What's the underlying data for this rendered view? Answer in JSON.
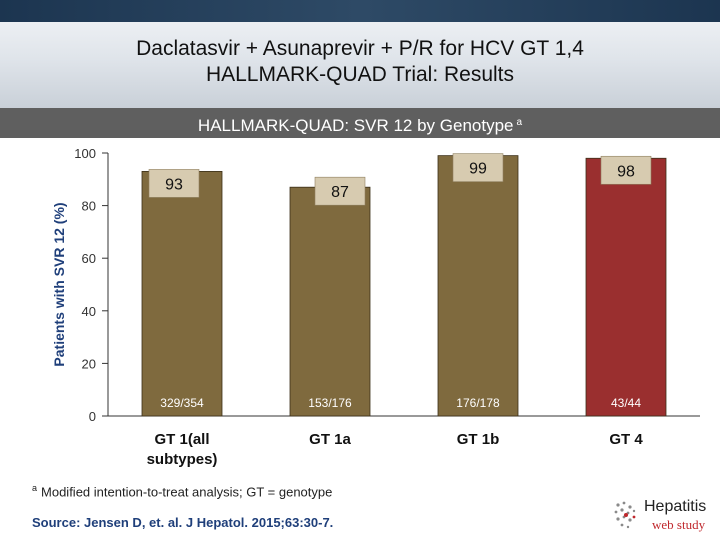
{
  "title": {
    "line1": "Daclatasvir + Asunaprevir + P/R for HCV GT 1,4",
    "line2": "HALLMARK-QUAD Trial: Results"
  },
  "subtitle": {
    "text": "HALLMARK-QUAD: SVR 12 by Genotype",
    "marker": "a"
  },
  "footnote": {
    "marker": "a",
    "text": "Modified intention-to-treat analysis; GT = genotype"
  },
  "source": "Source: Jensen D, et. al. J Hepatol. 2015;63:30-7.",
  "logo": {
    "line1": "Hepatitis",
    "line2": "web study"
  },
  "colors": {
    "gt1": "#7f6a3e",
    "gt4": "#9a2f2f",
    "label_box": "#d7cbb0"
  },
  "chart_data": {
    "type": "bar",
    "title": "HALLMARK-QUAD: SVR 12 by Genotype",
    "ylabel": "Patients with SVR 12 (%)",
    "xlabel": "",
    "ylim": [
      0,
      100
    ],
    "yticks": [
      0,
      20,
      40,
      60,
      80,
      100
    ],
    "grid": false,
    "categories": [
      "GT 1(all subtypes)",
      "GT 1a",
      "GT 1b",
      "GT 4"
    ],
    "category_lines": [
      [
        "GT 1(all",
        "subtypes)"
      ],
      [
        "GT 1a"
      ],
      [
        "GT 1b"
      ],
      [
        "GT 4"
      ]
    ],
    "values": [
      93,
      87,
      99,
      98
    ],
    "value_labels": [
      "93",
      "87",
      "99",
      "98"
    ],
    "counts": [
      "329/354",
      "153/176",
      "176/178",
      "43/44"
    ],
    "bar_colors": [
      "#7f6a3e",
      "#7f6a3e",
      "#7f6a3e",
      "#9a2f2f"
    ]
  }
}
